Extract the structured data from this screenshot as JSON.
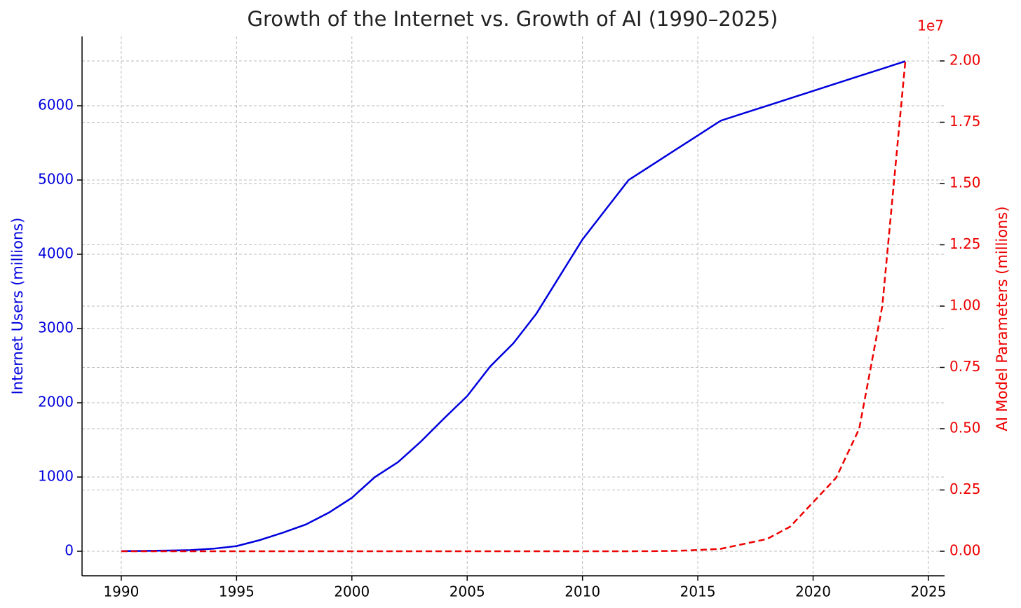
{
  "chart_data": {
    "type": "line",
    "title": "Growth of the Internet vs. Growth of AI (1990–2025)",
    "ylabel": "Internet Users (millions)",
    "y2label": "AI Model Parameters (millions)",
    "y2_offset_label": "1e7",
    "x": [
      1990,
      1991,
      1992,
      1993,
      1994,
      1995,
      1996,
      1997,
      1998,
      1999,
      2000,
      2001,
      2002,
      2003,
      2004,
      2005,
      2006,
      2007,
      2008,
      2009,
      2010,
      2011,
      2012,
      2013,
      2014,
      2015,
      2016,
      2017,
      2018,
      2019,
      2020,
      2021,
      2022,
      2023,
      2024
    ],
    "series": [
      {
        "name": "Internet Users (millions)",
        "color": "#0000dd",
        "dash": false,
        "values": [
          3,
          5,
          10,
          15,
          35,
          70,
          150,
          250,
          360,
          520,
          720,
          1000,
          1200,
          1480,
          1790,
          2090,
          2490,
          2800,
          3200,
          3700,
          4200,
          4600,
          5000,
          5200,
          5400,
          5600,
          5800,
          5900,
          6000,
          6100,
          6200,
          6300,
          6400,
          6500,
          6600
        ]
      },
      {
        "name": "AI Model Parameters (millions)",
        "color": "#ee0000",
        "dash": true,
        "axis": "y2",
        "values": [
          0,
          0,
          0,
          0,
          0,
          0,
          0,
          0,
          0,
          0,
          0,
          0,
          0,
          0,
          0,
          0,
          0,
          0,
          0,
          0,
          0,
          0,
          1000,
          5000,
          15000,
          50000,
          100000,
          300000,
          500000,
          1000000,
          2000000,
          3000000,
          5000000,
          10000000,
          20000000
        ]
      }
    ],
    "xlim": [
      1988.3,
      2025.7
    ],
    "xticks": [
      1990,
      1995,
      2000,
      2005,
      2010,
      2015,
      2020,
      2025
    ],
    "ylim": [
      -330,
      6934
    ],
    "yticks": [
      0,
      1000,
      2000,
      3000,
      4000,
      5000,
      6000
    ],
    "y2lim": [
      -1000000,
      21000000
    ],
    "y2ticks": [
      {
        "value": 0,
        "label": "0.00"
      },
      {
        "value": 2500000,
        "label": "0.25"
      },
      {
        "value": 5000000,
        "label": "0.50"
      },
      {
        "value": 7500000,
        "label": "0.75"
      },
      {
        "value": 10000000,
        "label": "1.00"
      },
      {
        "value": 12500000,
        "label": "1.25"
      },
      {
        "value": 15000000,
        "label": "1.50"
      },
      {
        "value": 17500000,
        "label": "1.75"
      },
      {
        "value": 20000000,
        "label": "2.00"
      }
    ],
    "grid": true,
    "ycolor": "#0000dd",
    "y2color": "#ee0000"
  }
}
